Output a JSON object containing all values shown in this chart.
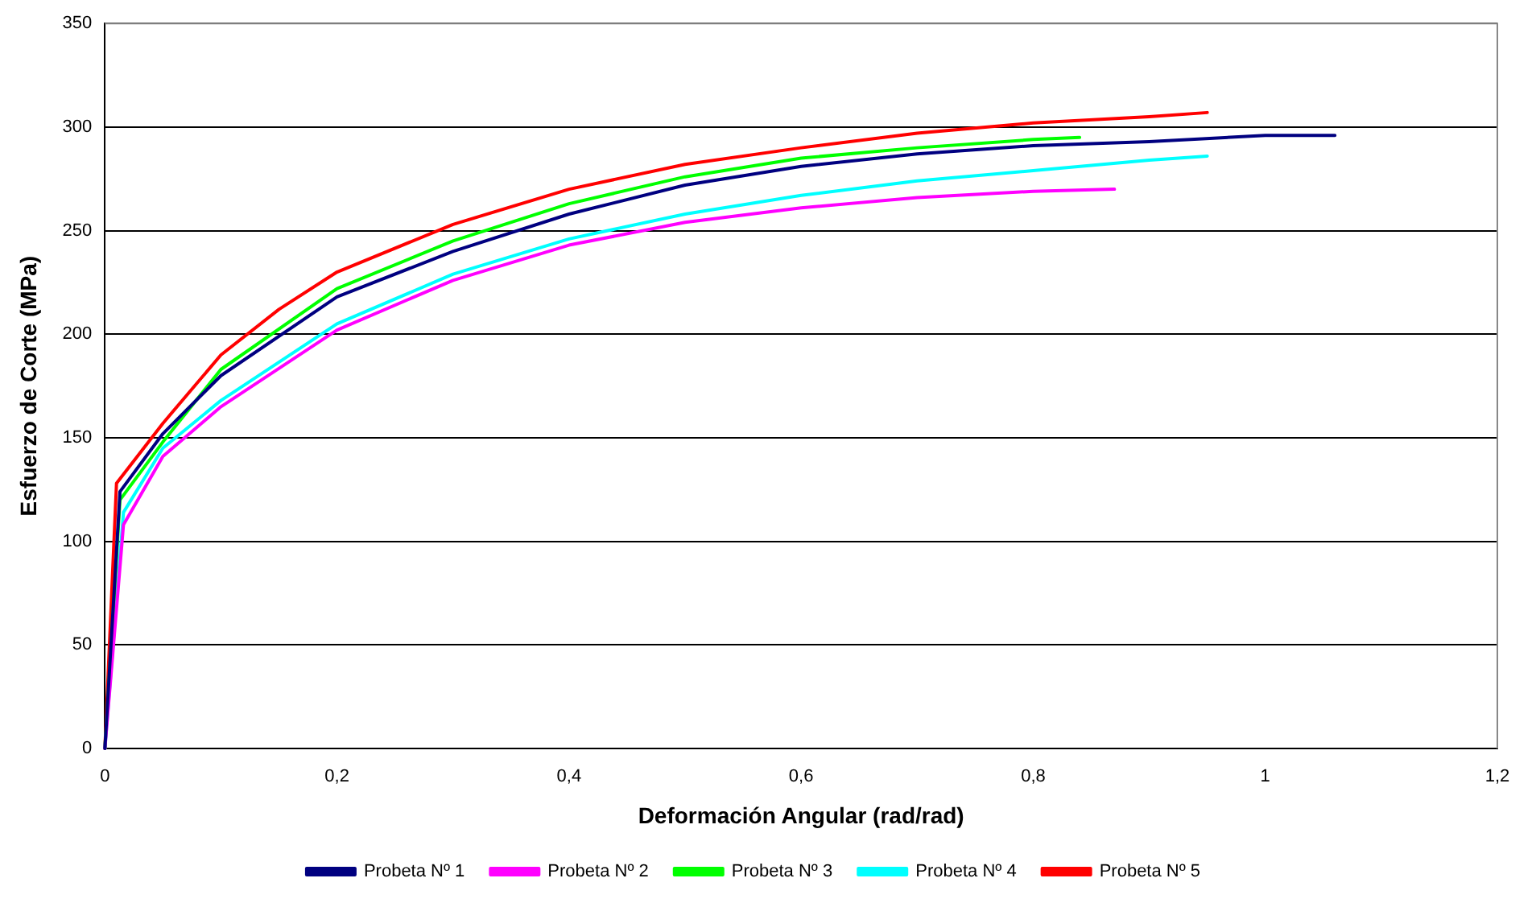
{
  "chart_data": {
    "type": "line",
    "xlabel": "Deformación Angular (rad/rad)",
    "ylabel": "Esfuerzo de Corte (MPa)",
    "xlim": [
      0,
      1.2
    ],
    "xticks": [
      0,
      {
        "value": 0.2,
        "label": "0,2"
      },
      {
        "value": 0.4,
        "label": "0,4"
      },
      {
        "value": 0.6,
        "label": "0,6"
      },
      {
        "value": 0.8,
        "label": "0,8"
      },
      1,
      {
        "value": 1.2,
        "label": "1,2"
      }
    ],
    "ylim": [
      0,
      350
    ],
    "yticks": [
      0,
      50,
      100,
      150,
      200,
      250,
      300,
      350
    ],
    "grid": "y",
    "legend": "bottom",
    "marker": "none",
    "line_style": "solid",
    "series": [
      {
        "name": "Probeta Nº 1",
        "color": "#000080",
        "x": [
          0,
          0.013,
          0.05,
          0.1,
          0.2,
          0.3,
          0.4,
          0.5,
          0.6,
          0.7,
          0.8,
          0.9,
          1.0,
          1.06
        ],
        "values": [
          0,
          124,
          152,
          180,
          218,
          240,
          258,
          272,
          281,
          287,
          291,
          293,
          296,
          296
        ]
      },
      {
        "name": "Probeta Nº 2",
        "color": "#ff00ff",
        "x": [
          0,
          0.016,
          0.05,
          0.1,
          0.2,
          0.3,
          0.4,
          0.5,
          0.6,
          0.7,
          0.8,
          0.87
        ],
        "values": [
          0,
          108,
          141,
          165,
          202,
          226,
          243,
          254,
          261,
          266,
          269,
          270
        ]
      },
      {
        "name": "Probeta Nº 3",
        "color": "#00ff00",
        "x": [
          0,
          0.013,
          0.05,
          0.1,
          0.2,
          0.3,
          0.4,
          0.5,
          0.6,
          0.7,
          0.8,
          0.84
        ],
        "values": [
          0,
          120,
          148,
          183,
          222,
          245,
          263,
          276,
          285,
          290,
          294,
          295
        ]
      },
      {
        "name": "Probeta Nº 4",
        "color": "#00ffff",
        "x": [
          0,
          0.016,
          0.05,
          0.1,
          0.2,
          0.3,
          0.4,
          0.5,
          0.6,
          0.7,
          0.8,
          0.9,
          0.95
        ],
        "values": [
          0,
          114,
          145,
          168,
          205,
          229,
          246,
          258,
          267,
          274,
          279,
          284,
          286
        ]
      },
      {
        "name": "Probeta Nº 5",
        "color": "#ff0000",
        "x": [
          0,
          0.01,
          0.05,
          0.1,
          0.15,
          0.2,
          0.3,
          0.4,
          0.5,
          0.6,
          0.7,
          0.8,
          0.9,
          0.95
        ],
        "values": [
          0,
          128,
          157,
          190,
          212,
          230,
          253,
          270,
          282,
          290,
          297,
          302,
          305,
          307
        ]
      }
    ]
  }
}
